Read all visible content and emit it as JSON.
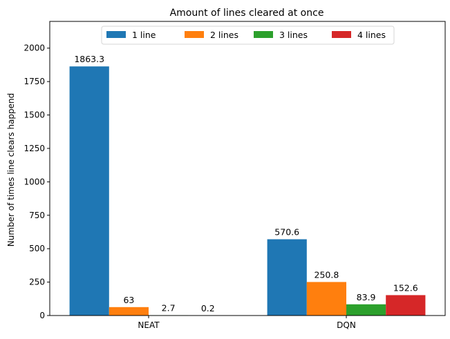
{
  "chart_data": {
    "type": "bar",
    "title": "Amount of lines cleared at once",
    "xlabel": "",
    "ylabel": "Number of times line clears happend",
    "categories": [
      "NEAT",
      "DQN"
    ],
    "series": [
      {
        "name": "1 line",
        "color": "#1f77b4",
        "values": [
          1863.3,
          570.6
        ]
      },
      {
        "name": "2 lines",
        "color": "#ff7f0e",
        "values": [
          63,
          250.8
        ]
      },
      {
        "name": "3 lines",
        "color": "#2ca02c",
        "values": [
          2.7,
          83.9
        ]
      },
      {
        "name": "4 lines",
        "color": "#d62728",
        "values": [
          0.2,
          152.6
        ]
      }
    ],
    "data_labels": [
      [
        "1863.3",
        "570.6"
      ],
      [
        "63",
        "250.8"
      ],
      [
        "2.7",
        "83.9"
      ],
      [
        "0.2",
        "152.6"
      ]
    ],
    "ylim": [
      0,
      2200
    ],
    "yticks": [
      0,
      250,
      500,
      750,
      1000,
      1250,
      1500,
      1750,
      2000
    ],
    "grid": false,
    "legend_position": "top-center"
  }
}
